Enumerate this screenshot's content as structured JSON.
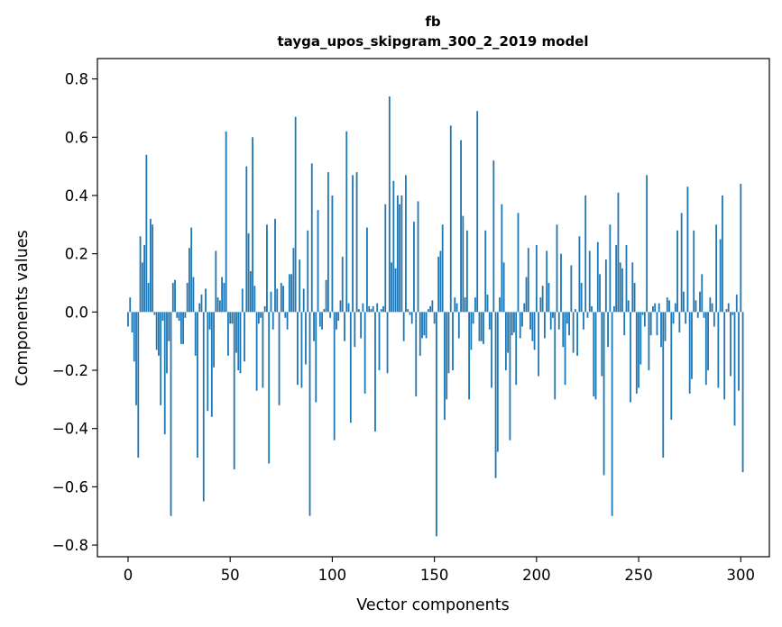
{
  "chart_data": {
    "type": "bar",
    "title_line1": "fb",
    "title_line2": "tayga_upos_skipgram_300_2_2019 model",
    "xlabel": "Vector components",
    "ylabel": "Components values",
    "xlim": [
      -15,
      314
    ],
    "ylim": [
      -0.84,
      0.87
    ],
    "xticks": [
      0,
      50,
      100,
      150,
      200,
      250,
      300
    ],
    "xtick_labels": [
      "0",
      "50",
      "100",
      "150",
      "200",
      "250",
      "300"
    ],
    "yticks": [
      -0.8,
      -0.6,
      -0.4,
      -0.2,
      0.0,
      0.2,
      0.4,
      0.6,
      0.8
    ],
    "ytick_labels": [
      "−0.8",
      "−0.6",
      "−0.4",
      "−0.2",
      "0.0",
      "0.2",
      "0.4",
      "0.6",
      "0.8"
    ],
    "bar_color": "#1f77b4",
    "values": [
      -0.05,
      0.05,
      -0.07,
      -0.17,
      -0.32,
      -0.5,
      0.26,
      0.17,
      0.23,
      0.54,
      0.1,
      0.32,
      0.3,
      -0.01,
      -0.13,
      -0.15,
      -0.32,
      -0.03,
      -0.42,
      -0.21,
      -0.1,
      -0.7,
      0.1,
      0.11,
      -0.02,
      -0.03,
      -0.11,
      -0.11,
      -0.02,
      0.1,
      0.22,
      0.29,
      0.12,
      -0.15,
      -0.5,
      0.03,
      0.06,
      -0.65,
      0.08,
      -0.34,
      -0.06,
      -0.36,
      -0.19,
      0.21,
      0.05,
      0.04,
      0.12,
      0.1,
      0.62,
      -0.15,
      -0.04,
      -0.04,
      -0.54,
      -0.14,
      -0.2,
      -0.21,
      0.08,
      -0.17,
      0.5,
      0.27,
      0.14,
      0.6,
      0.09,
      -0.27,
      -0.04,
      -0.02,
      -0.26,
      0.02,
      0.3,
      -0.52,
      0.07,
      -0.06,
      0.32,
      0.08,
      -0.32,
      0.1,
      0.09,
      -0.02,
      -0.06,
      0.13,
      0.13,
      0.22,
      0.67,
      -0.25,
      0.18,
      -0.26,
      0.08,
      -0.18,
      0.28,
      -0.7,
      0.51,
      -0.1,
      -0.31,
      0.35,
      -0.05,
      -0.06,
      0.01,
      0.11,
      0.48,
      -0.02,
      0.4,
      -0.44,
      -0.06,
      -0.03,
      0.04,
      0.19,
      -0.1,
      0.62,
      0.03,
      -0.38,
      0.47,
      -0.12,
      0.48,
      0.01,
      -0.09,
      0.03,
      -0.28,
      0.29,
      0.02,
      0.01,
      0.02,
      -0.41,
      0.03,
      -0.2,
      0.01,
      0.02,
      0.37,
      -0.21,
      0.74,
      0.17,
      0.45,
      0.15,
      0.4,
      0.37,
      0.4,
      -0.1,
      0.47,
      0.01,
      -0.01,
      -0.04,
      0.31,
      -0.29,
      0.38,
      -0.15,
      -0.09,
      -0.08,
      -0.09,
      0.01,
      0.02,
      0.04,
      -0.04,
      -0.77,
      0.19,
      0.21,
      0.3,
      -0.37,
      -0.3,
      -0.21,
      0.64,
      -0.2,
      0.05,
      0.03,
      -0.09,
      0.59,
      0.33,
      0.05,
      0.28,
      -0.3,
      -0.13,
      -0.04,
      0.05,
      0.69,
      -0.1,
      -0.1,
      -0.11,
      0.28,
      0.06,
      -0.06,
      -0.26,
      0.52,
      -0.57,
      -0.48,
      0.05,
      0.37,
      0.17,
      -0.2,
      -0.14,
      -0.44,
      -0.08,
      -0.07,
      -0.25,
      0.34,
      -0.09,
      -0.05,
      0.03,
      0.12,
      0.22,
      -0.06,
      -0.1,
      -0.13,
      0.23,
      -0.22,
      0.05,
      0.09,
      -0.09,
      0.21,
      0.1,
      -0.06,
      -0.02,
      -0.3,
      0.3,
      -0.06,
      0.2,
      -0.12,
      -0.25,
      -0.04,
      -0.08,
      0.16,
      -0.14,
      0.01,
      -0.15,
      0.26,
      0.1,
      -0.06,
      0.4,
      -0.02,
      0.21,
      0.02,
      -0.29,
      -0.3,
      0.24,
      0.13,
      -0.22,
      -0.56,
      0.18,
      -0.12,
      0.3,
      -0.7,
      0.02,
      0.23,
      0.41,
      0.17,
      0.15,
      -0.08,
      0.23,
      0.04,
      -0.31,
      0.17,
      0.1,
      -0.28,
      -0.26,
      -0.18,
      -0.01,
      -0.05,
      0.47,
      -0.2,
      -0.08,
      0.02,
      0.03,
      -0.08,
      0.03,
      -0.12,
      -0.5,
      -0.1,
      0.05,
      0.04,
      -0.37,
      -0.04,
      0.03,
      0.28,
      -0.07,
      0.34,
      0.07,
      -0.04,
      0.43,
      -0.28,
      -0.23,
      0.28,
      0.04,
      -0.02,
      0.07,
      0.13,
      -0.02,
      -0.25,
      -0.2,
      0.05,
      0.03,
      -0.05,
      0.3,
      -0.26,
      0.25,
      0.4,
      -0.3,
      0.01,
      0.03,
      -0.22,
      -0.01,
      -0.39,
      0.06,
      -0.27,
      0.44,
      -0.55
    ]
  }
}
